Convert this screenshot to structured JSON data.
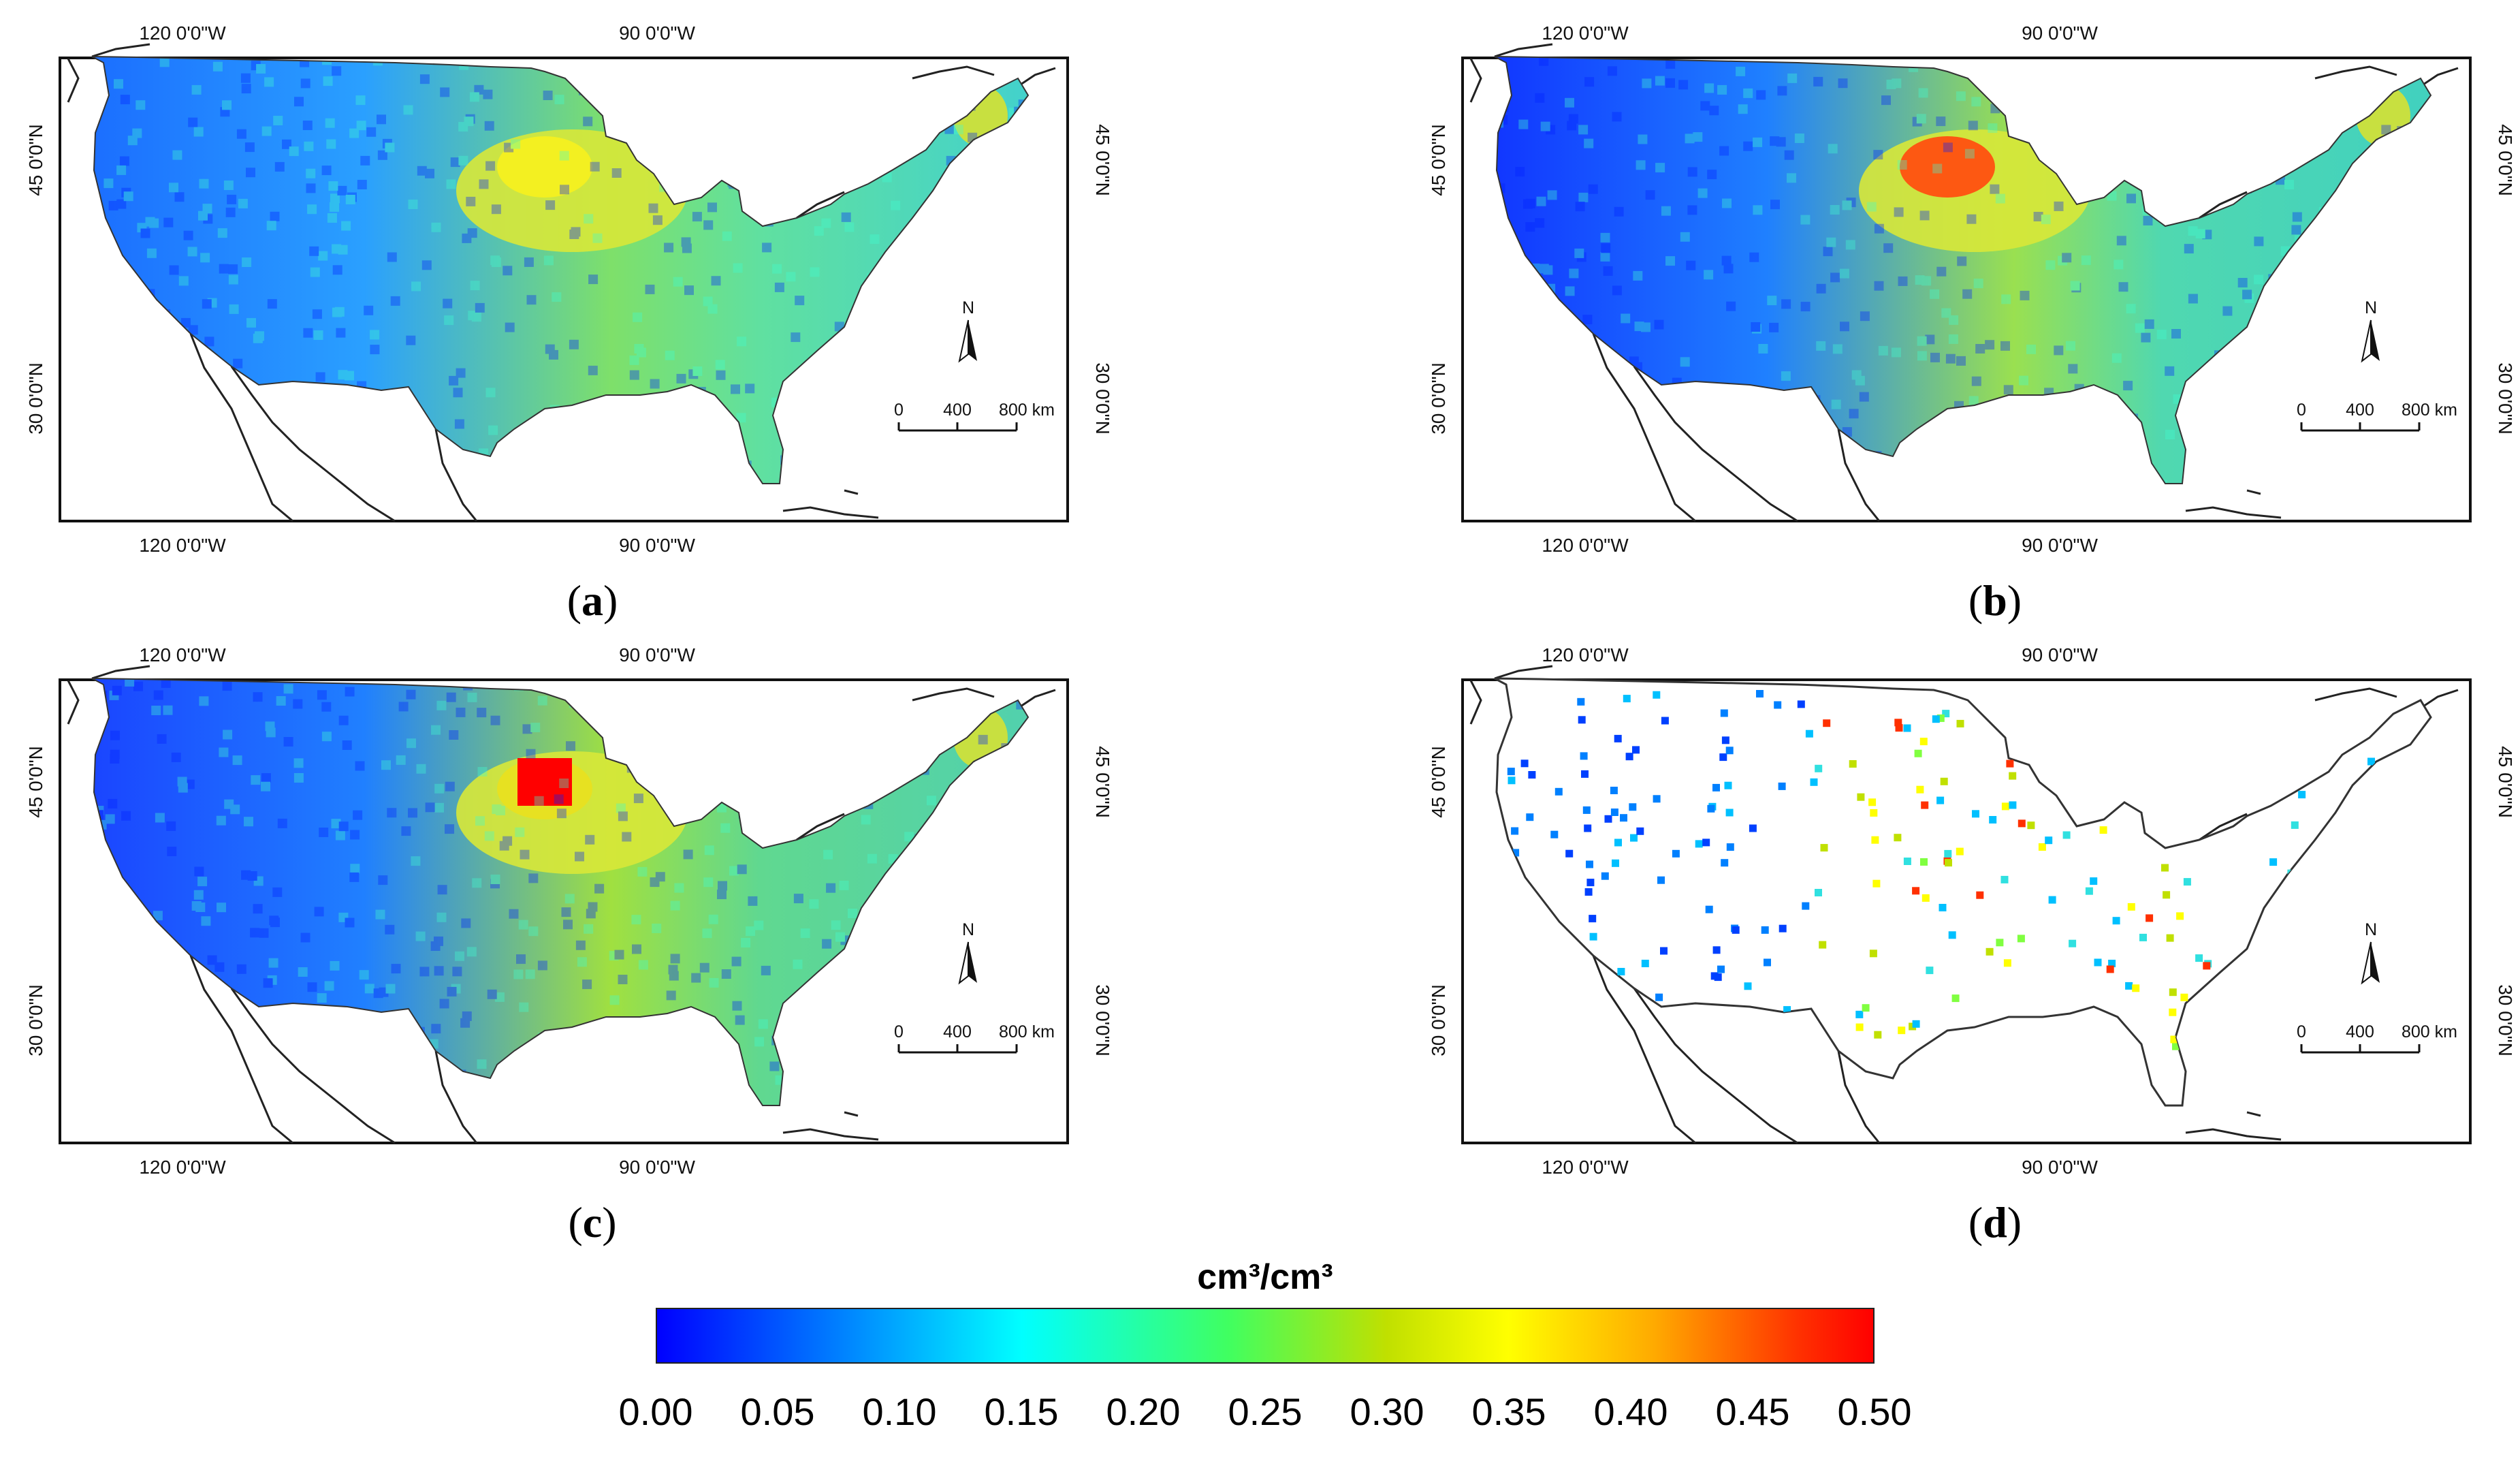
{
  "panels": [
    {
      "id": "a",
      "letter": "a"
    },
    {
      "id": "b",
      "letter": "b"
    },
    {
      "id": "c",
      "letter": "c"
    },
    {
      "id": "d",
      "letter": "d"
    }
  ],
  "map": {
    "lon_labels": [
      "120 0'0\"W",
      "90 0'0\"W"
    ],
    "lat_labels": [
      "45 0'0\"N",
      "30 0'0\"N"
    ],
    "north_label": "N",
    "scale_labels": [
      "0",
      "400",
      "800 km"
    ]
  },
  "legend": {
    "title": "cm³/cm³",
    "ticks": [
      "0.00",
      "0.05",
      "0.10",
      "0.15",
      "0.20",
      "0.25",
      "0.30",
      "0.35",
      "0.40",
      "0.45",
      "0.50"
    ],
    "range": [
      0.0,
      0.5
    ],
    "colors": [
      "#0000ff",
      "#0080ff",
      "#00ffff",
      "#40ff60",
      "#c0e000",
      "#ffff00",
      "#ffaa00",
      "#ff3000",
      "#ff0000"
    ]
  }
}
